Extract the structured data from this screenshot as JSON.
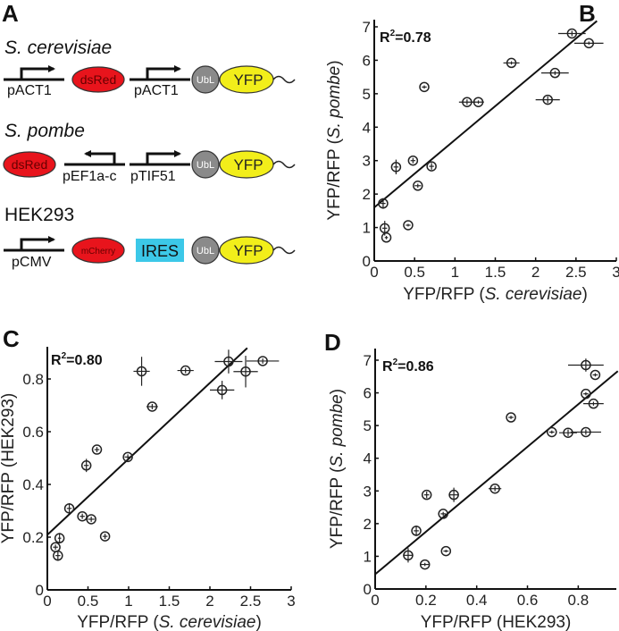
{
  "panel_a": {
    "label": "A",
    "constructs": [
      {
        "organism": "S. cerevisiae",
        "italic": true,
        "promoter1": "pACT1",
        "reporter": "dsRed",
        "promoter2": "pACT1",
        "tag": "UbL",
        "fluor": "YFP"
      },
      {
        "organism": "S. pombe",
        "italic": true,
        "reporter": "dsRed",
        "promoter1": "pEF1a-c",
        "promoter2": "pTIF51",
        "tag": "UbL",
        "fluor": "YFP"
      },
      {
        "organism": "HEK293",
        "italic": false,
        "promoter1": "pCMV",
        "reporter": "mCherry",
        "ires": "IRES",
        "tag": "UbL",
        "fluor": "YFP"
      }
    ],
    "colors": {
      "red": "#e8141c",
      "yellow": "#f2ee1a",
      "grey": "#8a8a8a",
      "cyan": "#3cc8e8"
    }
  },
  "chart_data": [
    {
      "panel": "B",
      "type": "scatter",
      "xlabel": "YFP/RFP (S. cerevisiae)",
      "xlabel_italic": "S. cerevisiae",
      "ylabel": "YFP/RFP (S. pombe)",
      "ylabel_italic": "S. pombe",
      "annotation": "R2=0.78",
      "xlim": [
        0,
        3
      ],
      "ylim": [
        0,
        7
      ],
      "xticks": [
        "0",
        "0.5",
        "1",
        "1.5",
        "2",
        "2.5",
        "3"
      ],
      "xtick_values": [
        0,
        0.5,
        1,
        1.5,
        2,
        2.5,
        3
      ],
      "yticks": [
        "0",
        "1",
        "2",
        "3",
        "4",
        "5",
        "6",
        "7"
      ],
      "ytick_values": [
        0,
        1,
        2,
        3,
        4,
        5,
        6,
        7
      ],
      "fit": {
        "intercept": 1.6,
        "slope": 2.02,
        "x_range": [
          0,
          2.76
        ]
      },
      "points": [
        {
          "x": 2.45,
          "y": 6.8,
          "xerr": 0.17,
          "yerr": 0.08
        },
        {
          "x": 2.66,
          "y": 6.51,
          "xerr": 0.18,
          "yerr": 0.05
        },
        {
          "x": 1.7,
          "y": 5.92,
          "xerr": 0.1,
          "yerr": 0.05
        },
        {
          "x": 2.24,
          "y": 5.62,
          "xerr": 0.17,
          "yerr": 0.06
        },
        {
          "x": 0.62,
          "y": 5.2,
          "xerr": 0.03,
          "yerr": 0.05
        },
        {
          "x": 1.15,
          "y": 4.75,
          "xerr": 0.1,
          "yerr": 0.08
        },
        {
          "x": 1.29,
          "y": 4.75,
          "xerr": 0.07,
          "yerr": 0.05
        },
        {
          "x": 2.15,
          "y": 4.82,
          "xerr": 0.15,
          "yerr": 0.1
        },
        {
          "x": 0.27,
          "y": 2.81,
          "xerr": 0.03,
          "yerr": 0.22
        },
        {
          "x": 0.48,
          "y": 3.0,
          "xerr": 0.03,
          "yerr": 0.08
        },
        {
          "x": 0.71,
          "y": 2.83,
          "xerr": 0.03,
          "yerr": 0.1
        },
        {
          "x": 0.54,
          "y": 2.25,
          "xerr": 0.04,
          "yerr": 0.06
        },
        {
          "x": 0.11,
          "y": 1.72,
          "xerr": 0.03,
          "yerr": 0.16
        },
        {
          "x": 0.13,
          "y": 0.98,
          "xerr": 0.03,
          "yerr": 0.22
        },
        {
          "x": 0.15,
          "y": 0.7,
          "xerr": 0.02,
          "yerr": 0.05
        },
        {
          "x": 0.42,
          "y": 1.07,
          "xerr": 0.03,
          "yerr": 0.04
        }
      ]
    },
    {
      "panel": "C",
      "type": "scatter",
      "xlabel": "YFP/RFP (S. cerevisiae)",
      "xlabel_italic": "S. cerevisiae",
      "ylabel": "YFP/RFP (HEK293)",
      "ylabel_italic": "",
      "annotation": "R2=0.80",
      "xlim": [
        0,
        3
      ],
      "ylim": [
        0,
        0.9
      ],
      "xticks": [
        "0",
        "0.5",
        "1",
        "1.5",
        "2",
        "2.5",
        "3"
      ],
      "xtick_values": [
        0,
        0.5,
        1,
        1.5,
        2,
        2.5,
        3
      ],
      "yticks": [
        "0",
        "0.2",
        "0.4",
        "0.6",
        "0.8"
      ],
      "ytick_values": [
        0,
        0.2,
        0.4,
        0.6,
        0.8
      ],
      "fit": {
        "intercept": 0.209,
        "slope": 0.288,
        "x_range": [
          0,
          2.46
        ]
      },
      "points": [
        {
          "x": 2.23,
          "y": 0.866,
          "xerr": 0.17,
          "yerr": 0.045
        },
        {
          "x": 2.65,
          "y": 0.868,
          "xerr": 0.2,
          "yerr": 0.01
        },
        {
          "x": 2.44,
          "y": 0.828,
          "xerr": 0.15,
          "yerr": 0.06
        },
        {
          "x": 1.16,
          "y": 0.829,
          "xerr": 0.1,
          "yerr": 0.055
        },
        {
          "x": 1.7,
          "y": 0.832,
          "xerr": 0.1,
          "yerr": 0.01
        },
        {
          "x": 2.15,
          "y": 0.758,
          "xerr": 0.15,
          "yerr": 0.035
        },
        {
          "x": 1.29,
          "y": 0.695,
          "xerr": 0.07,
          "yerr": 0.01
        },
        {
          "x": 0.61,
          "y": 0.532,
          "xerr": 0.03,
          "yerr": 0.01
        },
        {
          "x": 0.48,
          "y": 0.472,
          "xerr": 0.03,
          "yerr": 0.025
        },
        {
          "x": 0.99,
          "y": 0.504,
          "xerr": 0.04,
          "yerr": 0.01
        },
        {
          "x": 0.27,
          "y": 0.309,
          "xerr": 0.03,
          "yerr": 0.02
        },
        {
          "x": 0.43,
          "y": 0.279,
          "xerr": 0.03,
          "yerr": 0.01
        },
        {
          "x": 0.54,
          "y": 0.268,
          "xerr": 0.04,
          "yerr": 0.01
        },
        {
          "x": 0.71,
          "y": 0.203,
          "xerr": 0.03,
          "yerr": 0.01
        },
        {
          "x": 0.15,
          "y": 0.196,
          "xerr": 0.02,
          "yerr": 0.02
        },
        {
          "x": 0.1,
          "y": 0.162,
          "xerr": 0.03,
          "yerr": 0.01
        },
        {
          "x": 0.13,
          "y": 0.13,
          "xerr": 0.03,
          "yerr": 0.02
        }
      ]
    },
    {
      "panel": "D",
      "type": "scatter",
      "xlabel": "YFP/RFP (HEK293)",
      "xlabel_italic": "",
      "ylabel": "YFP/RFP (S. pombe)",
      "ylabel_italic": "S. pombe",
      "annotation": "R2=0.86",
      "xlim": [
        0,
        0.95
      ],
      "ylim": [
        0,
        7
      ],
      "xticks": [
        "0",
        "0.2",
        "0.4",
        "0.6",
        "0.8"
      ],
      "xtick_values": [
        0,
        0.2,
        0.4,
        0.6,
        0.8
      ],
      "yticks": [
        "0",
        "1",
        "2",
        "3",
        "4",
        "5",
        "6",
        "7"
      ],
      "ytick_values": [
        0,
        1,
        2,
        3,
        4,
        5,
        6,
        7
      ],
      "fit": {
        "intercept": 0.45,
        "slope": 6.5,
        "x_range": [
          0,
          0.956
        ]
      },
      "points": [
        {
          "x": 0.83,
          "y": 6.85,
          "xerr": 0.07,
          "yerr": 0.2
        },
        {
          "x": 0.867,
          "y": 6.55,
          "xerr": 0.01,
          "yerr": 0.05
        },
        {
          "x": 0.83,
          "y": 5.97,
          "xerr": 0.01,
          "yerr": 0.05
        },
        {
          "x": 0.86,
          "y": 5.67,
          "xerr": 0.04,
          "yerr": 0.06
        },
        {
          "x": 0.535,
          "y": 5.25,
          "xerr": 0.01,
          "yerr": 0.05
        },
        {
          "x": 0.83,
          "y": 4.8,
          "xerr": 0.06,
          "yerr": 0.08
        },
        {
          "x": 0.696,
          "y": 4.8,
          "xerr": 0.01,
          "yerr": 0.05
        },
        {
          "x": 0.76,
          "y": 4.78,
          "xerr": 0.035,
          "yerr": 0.1
        },
        {
          "x": 0.31,
          "y": 2.88,
          "xerr": 0.02,
          "yerr": 0.22
        },
        {
          "x": 0.472,
          "y": 3.07,
          "xerr": 0.025,
          "yerr": 0.08
        },
        {
          "x": 0.203,
          "y": 2.88,
          "xerr": 0.01,
          "yerr": 0.1
        },
        {
          "x": 0.268,
          "y": 2.3,
          "xerr": 0.01,
          "yerr": 0.06
        },
        {
          "x": 0.162,
          "y": 1.78,
          "xerr": 0.01,
          "yerr": 0.16
        },
        {
          "x": 0.13,
          "y": 1.03,
          "xerr": 0.02,
          "yerr": 0.22
        },
        {
          "x": 0.196,
          "y": 0.75,
          "xerr": 0.02,
          "yerr": 0.05
        },
        {
          "x": 0.279,
          "y": 1.16,
          "xerr": 0.01,
          "yerr": 0.04
        }
      ]
    }
  ]
}
